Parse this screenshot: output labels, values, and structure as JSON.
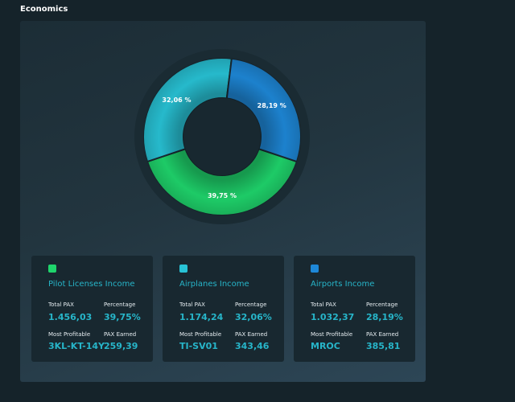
{
  "header": {
    "title": "Economics"
  },
  "chart_data": {
    "type": "pie",
    "categories": [
      "Pilot Licenses Income",
      "Airplanes Income",
      "Airports Income"
    ],
    "values": [
      39.75,
      32.06,
      28.19
    ],
    "labels": [
      "39,75 %",
      "32,06 %",
      "28,19 %"
    ],
    "colors": [
      "#1fd56c",
      "#28c3d6",
      "#1e88d8"
    ],
    "donut": true
  },
  "cards": [
    {
      "title": "Pilot Licenses Income",
      "color": "#1fd56c",
      "total_pax_label": "Total PAX",
      "total_pax": "1.456,03",
      "percentage_label": "Percentage",
      "percentage": "39,75%",
      "most_profitable_label": "Most Profitable",
      "most_profitable": "3KL-KT-14Y",
      "pax_earned_label": "PAX Earned",
      "pax_earned": "259,39"
    },
    {
      "title": "Airplanes Income",
      "color": "#28c3d6",
      "total_pax_label": "Total PAX",
      "total_pax": "1.174,24",
      "percentage_label": "Percentage",
      "percentage": "32,06%",
      "most_profitable_label": "Most Profitable",
      "most_profitable": "TI-SV01",
      "pax_earned_label": "PAX Earned",
      "pax_earned": "343,46"
    },
    {
      "title": "Airports Income",
      "color": "#1e88d8",
      "total_pax_label": "Total PAX",
      "total_pax": "1.032,37",
      "percentage_label": "Percentage",
      "percentage": "28,19%",
      "most_profitable_label": "Most Profitable",
      "most_profitable": "MROC",
      "pax_earned_label": "PAX Earned",
      "pax_earned": "385,81"
    }
  ]
}
